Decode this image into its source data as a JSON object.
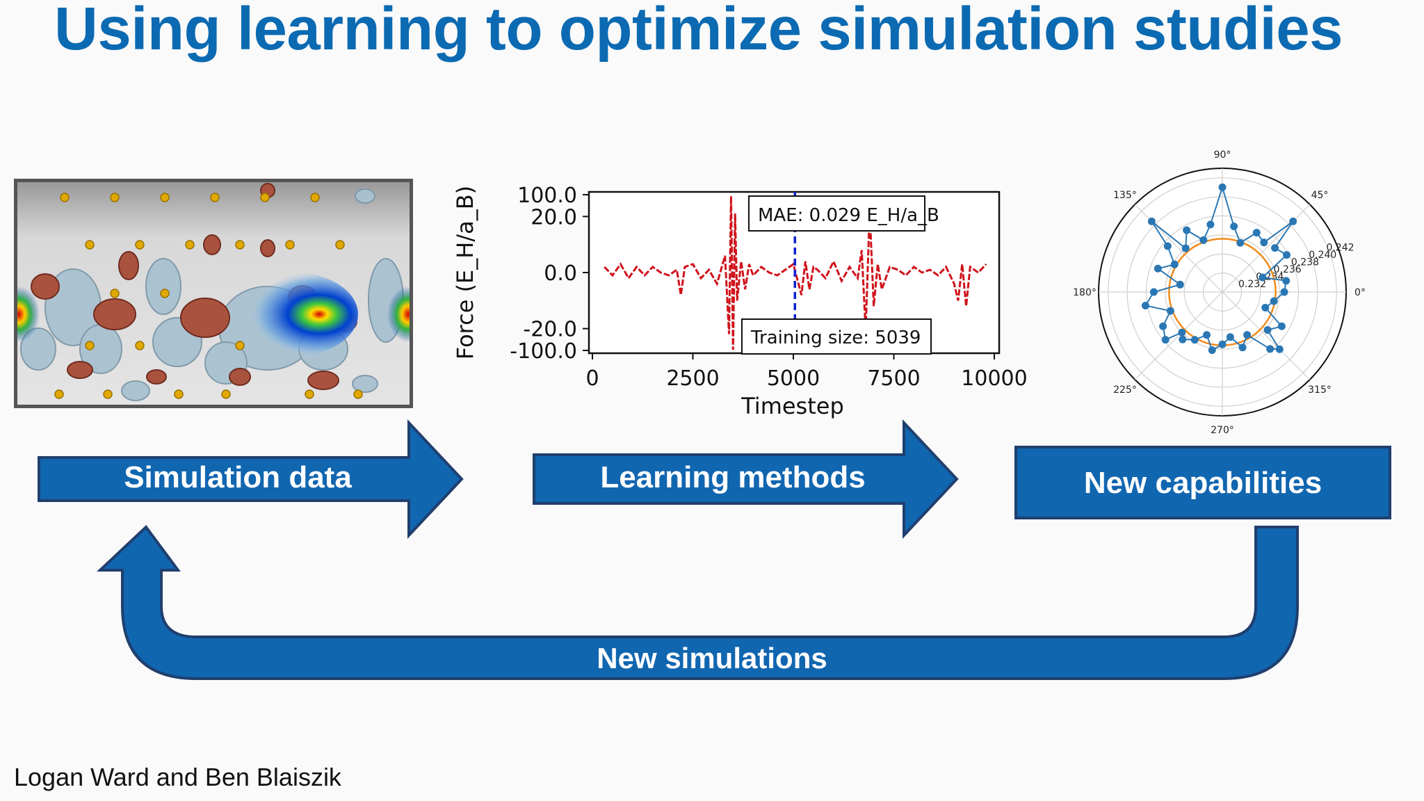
{
  "slide": {
    "title": "Using learning to optimize simulation studies",
    "credit": "Logan Ward and Ben Blaiszik"
  },
  "flow": {
    "step1": "Simulation data",
    "step2": "Learning methods",
    "step3": "New capabilities",
    "loop": "New simulations"
  },
  "colors": {
    "title": "#0b6ab2",
    "arrow_fill": "#1166b0",
    "arrow_border": "#1f3f6e"
  },
  "chart_data": [
    {
      "type": "line",
      "title": "",
      "xlabel": "Timestep",
      "ylabel": "Force (E_H/a_B)",
      "xlim": [
        0,
        10000
      ],
      "ylim": [
        -100.0,
        100.0
      ],
      "yscale": "symlog",
      "x_ticks": [
        "0",
        "2500",
        "5000",
        "7500",
        "10000"
      ],
      "y_ticks": [
        "100.0",
        "20.0",
        "0.0",
        "-20.0",
        "-100.0"
      ],
      "annotations": [
        "MAE: 0.029 E_H/a_B",
        "Training size: 5039"
      ],
      "vline_x": 5039,
      "series": [
        {
          "x": [
            300,
            500,
            700,
            900,
            1100,
            1300,
            1500,
            1700,
            1900,
            2100,
            2200,
            2300,
            2500,
            2700,
            2900,
            3100,
            3300,
            3400,
            3450,
            3500,
            3550,
            3600,
            3700,
            3800,
            3900,
            4000,
            4200,
            4400,
            4600,
            4800,
            5000,
            5200,
            5300,
            5400,
            5500,
            5600,
            5800,
            6000,
            6200,
            6400,
            6600,
            6700,
            6800,
            6900,
            7000,
            7100,
            7200,
            7400,
            7600,
            7800,
            8000,
            8200,
            8400,
            8600,
            8800,
            9000,
            9100,
            9200,
            9300,
            9400,
            9600,
            9800
          ],
          "y": [
            2,
            -1,
            3,
            -2,
            2,
            -1,
            2,
            0,
            -1,
            1,
            -8,
            2,
            3,
            -2,
            1,
            -4,
            6,
            -30,
            90,
            -95,
            25,
            -10,
            4,
            -6,
            3,
            -1,
            2,
            0,
            -1,
            1,
            3,
            -8,
            4,
            -6,
            2,
            1,
            -2,
            4,
            -3,
            2,
            -2,
            8,
            -22,
            30,
            -12,
            3,
            -6,
            2,
            1,
            -1,
            2,
            0,
            1,
            -1,
            2,
            -4,
            -10,
            3,
            -12,
            2,
            0,
            3
          ]
        }
      ]
    },
    {
      "type": "scatter",
      "subtype": "polar",
      "angle_ticks": [
        "0°",
        "45°",
        "90°",
        "135°",
        "180°",
        "225°",
        "270°",
        "315°"
      ],
      "radial_ticks": [
        "0.232",
        "0.234",
        "0.236",
        "0.238",
        "0.240",
        "0.242"
      ],
      "rlim": [
        0.23,
        0.243
      ],
      "series": [
        {
          "theta": [
            0,
            10,
            20,
            30,
            40,
            45,
            50,
            60,
            70,
            80,
            90,
            100,
            110,
            120,
            130,
            135,
            140,
            150,
            160,
            170,
            180,
            190,
            200,
            210,
            220,
            225,
            230,
            240,
            250,
            260,
            270,
            280,
            290,
            300,
            310,
            315,
            320,
            330,
            340,
            350
          ],
          "r": [
            0.2365,
            0.2368,
            0.2345,
            0.2378,
            0.2372,
            0.2405,
            0.2368,
            0.2372,
            0.2355,
            0.237,
            0.241,
            0.2372,
            0.2358,
            0.2375,
            0.236,
            0.2405,
            0.2375,
            0.2358,
            0.2372,
            0.2345,
            0.2372,
            0.2382,
            0.2358,
            0.2372,
            0.2378,
            0.236,
            0.2365,
            0.2358,
            0.2348,
            0.2362,
            0.2355,
            0.2348,
            0.2362,
            0.2352,
            0.2378,
            0.2385,
            0.2362,
            0.2372,
            0.2348,
            0.2355
          ]
        },
        {
          "theta_range": [
            0,
            360
          ],
          "r_const": 0.2356
        }
      ]
    }
  ]
}
